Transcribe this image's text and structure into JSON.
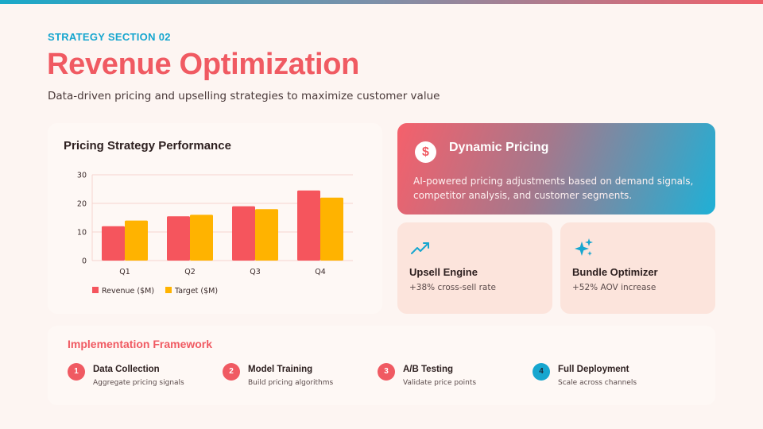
{
  "colors": {
    "accent_red": "#f05a62",
    "accent_blue": "#17a6cf",
    "revenue_bar": "#f5555d",
    "target_bar": "#ffb300"
  },
  "header": {
    "eyebrow": "STRATEGY SECTION 02",
    "title": "Revenue Optimization",
    "subtitle": "Data-driven pricing and upselling strategies to maximize customer value"
  },
  "chart_data": {
    "type": "bar",
    "title": "Pricing Strategy Performance",
    "categories": [
      "Q1",
      "Q2",
      "Q3",
      "Q4"
    ],
    "series": [
      {
        "name": "Revenue ($M)",
        "values": [
          12,
          15.5,
          19,
          24.5
        ]
      },
      {
        "name": "Target ($M)",
        "values": [
          14,
          16,
          18,
          22
        ]
      }
    ],
    "yticks": [
      "0",
      "10",
      "20",
      "30"
    ],
    "ylim": [
      0,
      30
    ],
    "xlabel": "",
    "ylabel": "",
    "legend_position": "bottom-left",
    "grid": true
  },
  "dynamic_pricing": {
    "icon": "dollar-icon",
    "icon_glyph": "$",
    "title": "Dynamic Pricing",
    "description": "AI-powered pricing adjustments based on demand signals, competitor analysis, and customer segments."
  },
  "upsell": {
    "icon": "trending-up-icon",
    "title": "Upsell Engine",
    "stat": "+38% cross-sell rate"
  },
  "bundle": {
    "icon": "sparkles-icon",
    "title": "Bundle Optimizer",
    "stat": "+52% AOV increase"
  },
  "framework": {
    "title": "Implementation Framework",
    "steps": [
      {
        "num": "1",
        "title": "Data Collection",
        "desc": "Aggregate pricing signals"
      },
      {
        "num": "2",
        "title": "Model Training",
        "desc": "Build pricing algorithms"
      },
      {
        "num": "3",
        "title": "A/B Testing",
        "desc": "Validate price points"
      },
      {
        "num": "4",
        "title": "Full Deployment",
        "desc": "Scale across channels"
      }
    ]
  }
}
